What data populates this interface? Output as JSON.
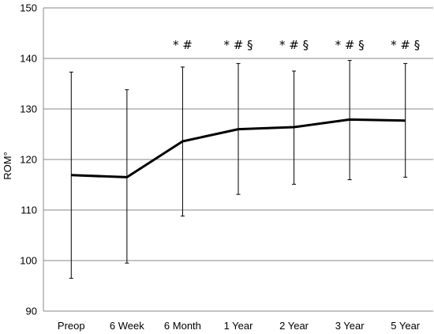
{
  "chart_data": {
    "type": "line",
    "title": "",
    "xlabel": "",
    "ylabel": "ROM°",
    "ylim": [
      90,
      150
    ],
    "yticks": [
      90,
      100,
      110,
      120,
      130,
      140,
      150
    ],
    "grid": "horizontal",
    "legend": "none",
    "categories": [
      "Preop",
      "6 Week",
      "6 Month",
      "1 Year",
      "2 Year",
      "3 Year",
      "5 Year"
    ],
    "series": [
      {
        "values": [
          116.9,
          116.5,
          123.6,
          126.0,
          126.4,
          127.9,
          127.7
        ],
        "error_upper": [
          137.3,
          133.8,
          138.3,
          139.0,
          137.5,
          139.6,
          139.0
        ],
        "error_lower": [
          96.5,
          99.5,
          108.8,
          113.1,
          115.1,
          116.0,
          116.5
        ]
      }
    ],
    "annotations": [
      "",
      "",
      "* #",
      "* # §",
      "* # §",
      "* # §",
      "* # §"
    ],
    "colors": {
      "line": "#000000",
      "grid": "#888888",
      "axis": "#888888"
    }
  }
}
